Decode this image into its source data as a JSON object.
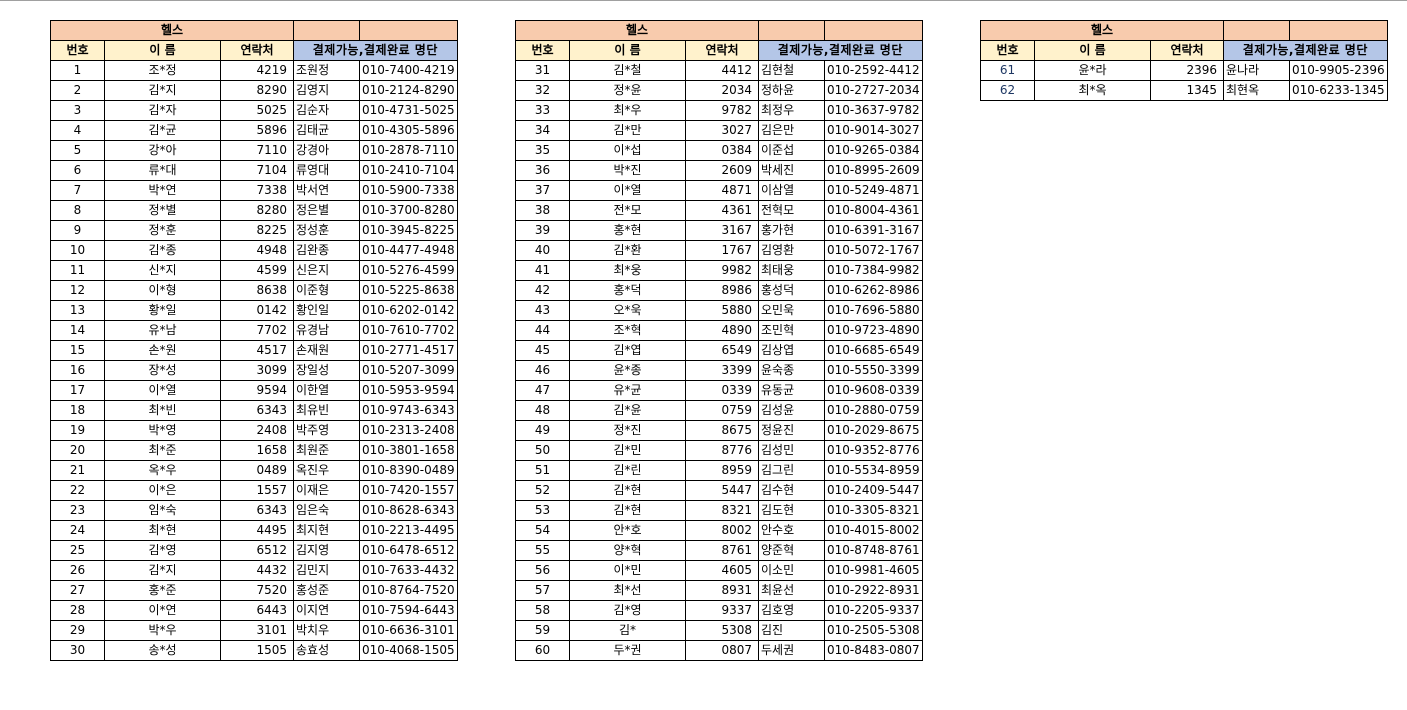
{
  "tables": [
    {
      "title": "헬스",
      "headers": {
        "no": "번호",
        "name": "이 름",
        "contact": "연락처",
        "list": "결제가능,결제완료 명단"
      },
      "rows": [
        [
          "1",
          "조*정",
          "4219",
          "조원정",
          "010-7400-4219"
        ],
        [
          "2",
          "김*지",
          "8290",
          "김영지",
          "010-2124-8290"
        ],
        [
          "3",
          "김*자",
          "5025",
          "김순자",
          "010-4731-5025"
        ],
        [
          "4",
          "김*균",
          "5896",
          "김태균",
          "010-4305-5896"
        ],
        [
          "5",
          "강*아",
          "7110",
          "강경아",
          "010-2878-7110"
        ],
        [
          "6",
          "류*대",
          "7104",
          "류영대",
          "010-2410-7104"
        ],
        [
          "7",
          "박*연",
          "7338",
          "박서연",
          "010-5900-7338"
        ],
        [
          "8",
          "정*별",
          "8280",
          "정은별",
          "010-3700-8280"
        ],
        [
          "9",
          "정*훈",
          "8225",
          "정성훈",
          "010-3945-8225"
        ],
        [
          "10",
          "김*종",
          "4948",
          "김완종",
          "010-4477-4948"
        ],
        [
          "11",
          "신*지",
          "4599",
          "신은지",
          "010-5276-4599"
        ],
        [
          "12",
          "이*형",
          "8638",
          "이준형",
          "010-5225-8638"
        ],
        [
          "13",
          "황*일",
          "0142",
          "황인일",
          "010-6202-0142"
        ],
        [
          "14",
          "유*남",
          "7702",
          "유경남",
          "010-7610-7702"
        ],
        [
          "15",
          "손*원",
          "4517",
          "손재원",
          "010-2771-4517"
        ],
        [
          "16",
          "장*성",
          "3099",
          "장일성",
          "010-5207-3099"
        ],
        [
          "17",
          "이*열",
          "9594",
          "이한열",
          "010-5953-9594"
        ],
        [
          "18",
          "최*빈",
          "6343",
          "최유빈",
          "010-9743-6343"
        ],
        [
          "19",
          "박*영",
          "2408",
          "박주영",
          "010-2313-2408"
        ],
        [
          "20",
          "최*준",
          "1658",
          "최원준",
          "010-3801-1658"
        ],
        [
          "21",
          "옥*우",
          "0489",
          "옥진우",
          "010-8390-0489"
        ],
        [
          "22",
          "이*은",
          "1557",
          "이재은",
          "010-7420-1557"
        ],
        [
          "23",
          "임*숙",
          "6343",
          "임은숙",
          "010-8628-6343"
        ],
        [
          "24",
          "최*현",
          "4495",
          "최지현",
          "010-2213-4495"
        ],
        [
          "25",
          "김*영",
          "6512",
          "김지영",
          "010-6478-6512"
        ],
        [
          "26",
          "김*지",
          "4432",
          "김민지",
          "010-7633-4432"
        ],
        [
          "27",
          "홍*준",
          "7520",
          "홍성준",
          "010-8764-7520"
        ],
        [
          "28",
          "이*연",
          "6443",
          "이지연",
          "010-7594-6443"
        ],
        [
          "29",
          "박*우",
          "3101",
          "박치우",
          "010-6636-3101"
        ],
        [
          "30",
          "송*성",
          "1505",
          "송효성",
          "010-4068-1505"
        ]
      ]
    },
    {
      "title": "헬스",
      "headers": {
        "no": "번호",
        "name": "이 름",
        "contact": "연락처",
        "list": "결제가능,결제완료 명단"
      },
      "rows": [
        [
          "31",
          "김*철",
          "4412",
          "김현철",
          "010-2592-4412"
        ],
        [
          "32",
          "정*윤",
          "2034",
          "정하윤",
          "010-2727-2034"
        ],
        [
          "33",
          "최*우",
          "9782",
          "최정우",
          "010-3637-9782"
        ],
        [
          "34",
          "김*만",
          "3027",
          "김은만",
          "010-9014-3027"
        ],
        [
          "35",
          "이*섭",
          "0384",
          "이준섭",
          "010-9265-0384"
        ],
        [
          "36",
          "박*진",
          "2609",
          "박세진",
          "010-8995-2609"
        ],
        [
          "37",
          "이*열",
          "4871",
          "이삼열",
          "010-5249-4871"
        ],
        [
          "38",
          "전*모",
          "4361",
          "전혁모",
          "010-8004-4361"
        ],
        [
          "39",
          "홍*현",
          "3167",
          "홍가현",
          "010-6391-3167"
        ],
        [
          "40",
          "김*환",
          "1767",
          "김영환",
          "010-5072-1767"
        ],
        [
          "41",
          "최*웅",
          "9982",
          "최태웅",
          "010-7384-9982"
        ],
        [
          "42",
          "홍*덕",
          "8986",
          "홍성덕",
          "010-6262-8986"
        ],
        [
          "43",
          "오*욱",
          "5880",
          "오민욱",
          "010-7696-5880"
        ],
        [
          "44",
          "조*혁",
          "4890",
          "조민혁",
          "010-9723-4890"
        ],
        [
          "45",
          "김*엽",
          "6549",
          "김상엽",
          "010-6685-6549"
        ],
        [
          "46",
          "윤*종",
          "3399",
          "윤숙종",
          "010-5550-3399"
        ],
        [
          "47",
          "유*균",
          "0339",
          "유동균",
          "010-9608-0339"
        ],
        [
          "48",
          "김*윤",
          "0759",
          "김성윤",
          "010-2880-0759"
        ],
        [
          "49",
          "정*진",
          "8675",
          "정윤진",
          "010-2029-8675"
        ],
        [
          "50",
          "김*민",
          "8776",
          "김성민",
          "010-9352-8776"
        ],
        [
          "51",
          "김*린",
          "8959",
          "김그린",
          "010-5534-8959"
        ],
        [
          "52",
          "김*현",
          "5447",
          "김수현",
          "010-2409-5447"
        ],
        [
          "53",
          "김*현",
          "8321",
          "김도현",
          "010-3305-8321"
        ],
        [
          "54",
          "안*호",
          "8002",
          "안수호",
          "010-4015-8002"
        ],
        [
          "55",
          "양*혁",
          "8761",
          "양준혁",
          "010-8748-8761"
        ],
        [
          "56",
          "이*민",
          "4605",
          "이소민",
          "010-9981-4605"
        ],
        [
          "57",
          "최*선",
          "8931",
          "최윤선",
          "010-2922-8931"
        ],
        [
          "58",
          "김*영",
          "9337",
          "김호영",
          "010-2205-9337"
        ],
        [
          "59",
          "김*",
          "5308",
          "김진",
          "010-2505-5308"
        ],
        [
          "60",
          "두*권",
          "0807",
          "두세권",
          "010-8483-0807"
        ]
      ]
    },
    {
      "title": "헬스",
      "headers": {
        "no": "번호",
        "name": "이 름",
        "contact": "연락처",
        "list": "결제가능,결제완료 명단"
      },
      "rows": [
        [
          "61",
          "윤*라",
          "2396",
          "윤나라",
          "010-9905-2396"
        ],
        [
          "62",
          "최*옥",
          "1345",
          "최현옥",
          "010-6233-1345"
        ]
      ]
    }
  ],
  "colors": {
    "title_bg": "#f8cbad",
    "header_bg": "#fff2cc",
    "list_header_bg": "#b4c6e7"
  }
}
